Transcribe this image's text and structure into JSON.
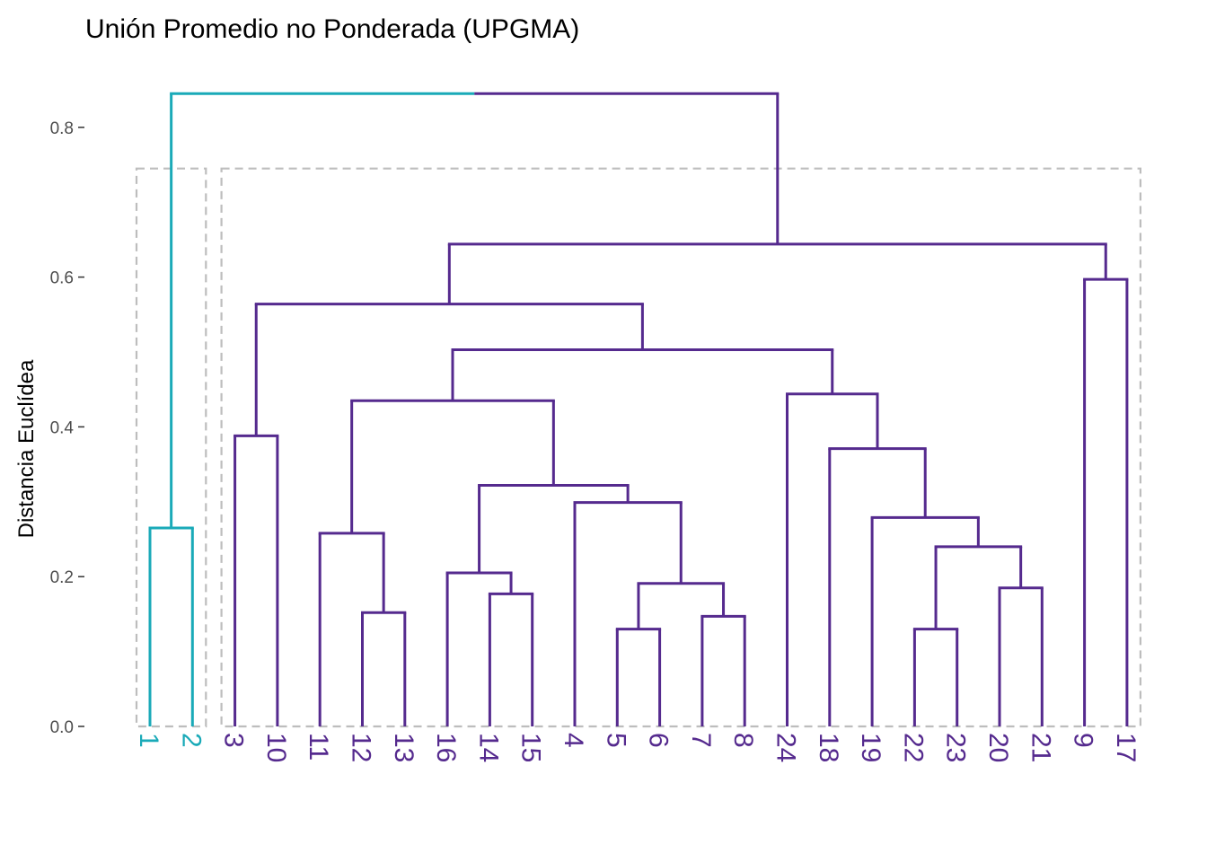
{
  "chart_data": {
    "type": "dendrogram",
    "title": "Unión Promedio no Ponderada (UPGMA)",
    "ylabel": "Distancia Euclídea",
    "xlabel": "",
    "ylim": [
      0,
      0.85
    ],
    "y_ticks": [
      {
        "value": 0.0,
        "label": "0.0"
      },
      {
        "value": 0.2,
        "label": "0.2"
      },
      {
        "value": 0.4,
        "label": "0.4"
      },
      {
        "value": 0.6,
        "label": "0.6"
      },
      {
        "value": 0.8,
        "label": "0.8"
      }
    ],
    "grid": false,
    "leaves": [
      "1",
      "2",
      "3",
      "10",
      "11",
      "12",
      "13",
      "16",
      "14",
      "15",
      "4",
      "5",
      "6",
      "7",
      "8",
      "24",
      "18",
      "19",
      "22",
      "23",
      "20",
      "21",
      "9",
      "17"
    ],
    "leaf_clusters": [
      1,
      1,
      2,
      2,
      2,
      2,
      2,
      2,
      2,
      2,
      2,
      2,
      2,
      2,
      2,
      2,
      2,
      2,
      2,
      2,
      2,
      2,
      2,
      2
    ],
    "merges": [
      {
        "id": "m1",
        "left": "1",
        "right": "2",
        "height": 0.265
      },
      {
        "id": "m2",
        "left": "3",
        "right": "10",
        "height": 0.388
      },
      {
        "id": "m3",
        "left": "12",
        "right": "13",
        "height": 0.152
      },
      {
        "id": "m4",
        "left": "11",
        "right": "m3",
        "height": 0.258
      },
      {
        "id": "m5",
        "left": "14",
        "right": "15",
        "height": 0.177
      },
      {
        "id": "m6",
        "left": "16",
        "right": "m5",
        "height": 0.205
      },
      {
        "id": "m7",
        "left": "5",
        "right": "6",
        "height": 0.13
      },
      {
        "id": "m8",
        "left": "7",
        "right": "8",
        "height": 0.147
      },
      {
        "id": "m9",
        "left": "m7",
        "right": "m8",
        "height": 0.191
      },
      {
        "id": "m10",
        "left": "4",
        "right": "m9",
        "height": 0.299
      },
      {
        "id": "m11",
        "left": "m6",
        "right": "m10",
        "height": 0.322
      },
      {
        "id": "m12",
        "left": "m4",
        "right": "m11",
        "height": 0.435
      },
      {
        "id": "m13",
        "left": "22",
        "right": "23",
        "height": 0.13
      },
      {
        "id": "m14",
        "left": "20",
        "right": "21",
        "height": 0.185
      },
      {
        "id": "m15",
        "left": "m13",
        "right": "m14",
        "height": 0.24
      },
      {
        "id": "m16",
        "left": "19",
        "right": "m15",
        "height": 0.279
      },
      {
        "id": "m17",
        "left": "18",
        "right": "m16",
        "height": 0.371
      },
      {
        "id": "m18",
        "left": "24",
        "right": "m17",
        "height": 0.444
      },
      {
        "id": "m19",
        "left": "m12",
        "right": "m18",
        "height": 0.503
      },
      {
        "id": "m20",
        "left": "m2",
        "right": "m19",
        "height": 0.564
      },
      {
        "id": "m21",
        "left": "9",
        "right": "17",
        "height": 0.597
      },
      {
        "id": "m22",
        "left": "m20",
        "right": "m21",
        "height": 0.644
      },
      {
        "id": "m23",
        "left": "m1",
        "right": "m22",
        "height": 0.845
      }
    ],
    "k_clusters": 2,
    "cluster_boxes": true,
    "cluster_box_top": 0.745,
    "colors": {
      "cluster_1": "#1aaab8",
      "cluster_2": "#552a8e",
      "box": "#bdbdbd",
      "axis": "#333333"
    }
  }
}
